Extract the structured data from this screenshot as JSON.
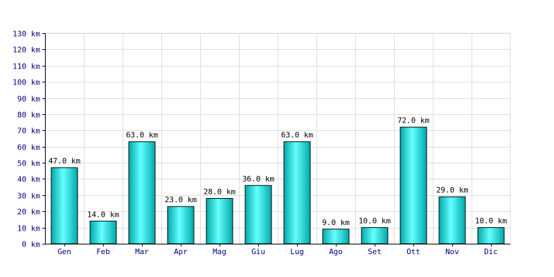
{
  "chart_data": {
    "type": "bar",
    "categories": [
      "Gen",
      "Feb",
      "Mar",
      "Apr",
      "Mag",
      "Giu",
      "Lug",
      "Ago",
      "Set",
      "Ott",
      "Nov",
      "Dic"
    ],
    "values": [
      47.0,
      14.0,
      63.0,
      23.0,
      28.0,
      36.0,
      63.0,
      9.0,
      10.0,
      72.0,
      29.0,
      10.0
    ],
    "value_labels": [
      "47.0 km",
      "14.0 km",
      "63.0 km",
      "23.0 km",
      "28.0 km",
      "36.0 km",
      "63.0 km",
      "9.0 km",
      "10.0 km",
      "72.0 km",
      "29.0 km",
      "10.0 km"
    ],
    "y_ticks": [
      0,
      10,
      20,
      30,
      40,
      50,
      60,
      70,
      80,
      90,
      100,
      110,
      120,
      130
    ],
    "y_tick_labels": [
      "0 km",
      "10 km",
      "20 km",
      "30 km",
      "40 km",
      "50 km",
      "60 km",
      "70 km",
      "80 km",
      "90 km",
      "100 km",
      "110 km",
      "120 km",
      "130 km"
    ],
    "ylim": [
      0,
      130
    ],
    "title": "",
    "xlabel": "",
    "ylabel": "",
    "grid": true,
    "colors": {
      "bar_light": "#66ffff",
      "bar_dark": "#00aaaa",
      "bar_border": "#000000",
      "grid": "#dddddd",
      "axis": "#000000",
      "tick_text": "#000080"
    }
  }
}
